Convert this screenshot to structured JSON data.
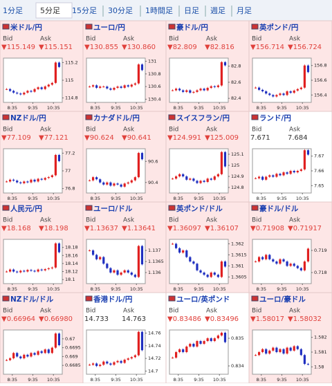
{
  "tabs": [
    "1分足",
    "5分足",
    "15分足",
    "30分足",
    "1時間足",
    "日足",
    "週足",
    "月足"
  ],
  "selected_tab": 1,
  "labels": {
    "bid": "Bid",
    "ask": "Ask"
  },
  "tiles": [
    {
      "name": "米ドル/円",
      "bid": "▼115.149",
      "ask": "▼115.151",
      "value_color": "#e0413c",
      "background": "#fde6e6",
      "ylim": [
        114.75,
        115.25
      ],
      "yticks": [
        115.2,
        115,
        114.8
      ],
      "xlabels": [
        "8:35",
        "9:35",
        "10:35"
      ],
      "closes": [
        114.9,
        114.88,
        114.86,
        114.85,
        114.84,
        114.86,
        114.88,
        114.87,
        114.9,
        114.92,
        114.9,
        114.93,
        114.95,
        114.97,
        115.2,
        115.15
      ]
    },
    {
      "name": "ユーロ/円",
      "bid": "▼130.855",
      "ask": "▼130.860",
      "value_color": "#e0413c",
      "background": "#fde6e6",
      "ylim": [
        130.35,
        131.05
      ],
      "yticks": [
        131,
        130.8,
        130.6,
        130.4
      ],
      "xlabels": [
        "8:35",
        "9:35",
        "10:35"
      ],
      "closes": [
        130.6,
        130.62,
        130.58,
        130.6,
        130.6,
        130.57,
        130.55,
        130.58,
        130.6,
        130.58,
        130.62,
        130.6,
        130.63,
        130.65,
        130.95,
        130.86
      ]
    },
    {
      "name": "豪ドル/円",
      "bid": "▼82.809",
      "ask": "▼82.816",
      "value_color": "#e0413c",
      "background": "#fde6e6",
      "ylim": [
        82.35,
        82.9
      ],
      "yticks": [
        82.8,
        82.6,
        82.4
      ],
      "xlabels": [
        "8:35",
        "9:35",
        "10:35"
      ],
      "closes": [
        82.5,
        82.52,
        82.5,
        82.48,
        82.5,
        82.47,
        82.48,
        82.5,
        82.52,
        82.5,
        82.53,
        82.55,
        82.54,
        82.56,
        82.85,
        82.81
      ]
    },
    {
      "name": "英ポンド/円",
      "bid": "▼156.714",
      "ask": "▼156.724",
      "value_color": "#e0413c",
      "background": "#fde6e6",
      "ylim": [
        156.3,
        156.9
      ],
      "yticks": [
        156.8,
        156.6,
        156.4
      ],
      "xlabels": [
        "8:35",
        "9:35",
        "10:35"
      ],
      "closes": [
        156.5,
        156.47,
        156.45,
        156.42,
        156.4,
        156.38,
        156.4,
        156.42,
        156.4,
        156.45,
        156.43,
        156.46,
        156.48,
        156.5,
        156.8,
        156.71
      ]
    },
    {
      "name": "NZドル/円",
      "bid": "▼77.109",
      "ask": "▼77.121",
      "value_color": "#e0413c",
      "background": "#fde6e6",
      "ylim": [
        76.75,
        77.25
      ],
      "yticks": [
        77.2,
        77,
        76.8
      ],
      "xlabels": [
        "8:35",
        "9:35",
        "10:35"
      ],
      "closes": [
        76.88,
        76.9,
        76.89,
        76.87,
        76.86,
        76.88,
        76.87,
        76.9,
        76.88,
        76.91,
        76.9,
        76.92,
        76.93,
        76.95,
        77.18,
        77.11
      ]
    },
    {
      "name": "カナダドル/円",
      "bid": "▼90.624",
      "ask": "▼90.641",
      "value_color": "#e0413c",
      "background": "#fde6e6",
      "ylim": [
        90.3,
        90.72
      ],
      "yticks": [
        90.6,
        90.4
      ],
      "xlabels": [
        "8:35",
        "9:35",
        "10:35"
      ],
      "closes": [
        90.42,
        90.45,
        90.43,
        90.4,
        90.38,
        90.4,
        90.37,
        90.39,
        90.38,
        90.36,
        90.39,
        90.4,
        90.42,
        90.45,
        90.68,
        90.62
      ]
    },
    {
      "name": "スイスフラン/円",
      "bid": "▼124.991",
      "ask": "▼125.009",
      "value_color": "#e0413c",
      "background": "#fde6e6",
      "ylim": [
        124.75,
        125.15
      ],
      "yticks": [
        125.1,
        125,
        124.9,
        124.8
      ],
      "xlabels": [
        "8:35",
        "9:35",
        "10:35"
      ],
      "closes": [
        124.88,
        124.9,
        124.92,
        124.9,
        124.87,
        124.88,
        124.86,
        124.84,
        124.86,
        124.85,
        124.88,
        124.87,
        124.9,
        124.92,
        125.12,
        124.99
      ]
    },
    {
      "name": "ランド/円",
      "bid": "7.671",
      "ask": "7.684",
      "value_color": "#333333",
      "background": "#ffffff",
      "ylim": [
        7.645,
        7.675
      ],
      "yticks": [
        7.67,
        7.66,
        7.65
      ],
      "xlabels": [
        "8:35",
        "9:35",
        "10:35"
      ],
      "closes": [
        7.655,
        7.656,
        7.654,
        7.656,
        7.657,
        7.656,
        7.658,
        7.657,
        7.659,
        7.658,
        7.66,
        7.659,
        7.66,
        7.661,
        7.674,
        7.671
      ]
    },
    {
      "name": "人民元/円",
      "bid": "▼18.168",
      "ask": "▼18.198",
      "value_color": "#e0413c",
      "background": "#fde6e6",
      "ylim": [
        18.09,
        18.2
      ],
      "yticks": [
        18.18,
        18.16,
        18.14,
        18.12,
        18.1
      ],
      "xlabels": [
        "8:35",
        "9:35",
        "10:35"
      ],
      "closes": [
        18.12,
        18.125,
        18.12,
        18.118,
        18.122,
        18.12,
        18.124,
        18.122,
        18.12,
        18.125,
        18.123,
        18.126,
        18.128,
        18.13,
        18.19,
        18.168
      ]
    },
    {
      "name": "ユーロ/ドル",
      "bid": "▼1.13637",
      "ask": "▼1.13641",
      "value_color": "#e0413c",
      "background": "#fde6e6",
      "ylim": [
        1.1355,
        1.1375
      ],
      "yticks": [
        1.137,
        1.1365,
        1.136
      ],
      "xlabels": [
        "8:35",
        "9:35",
        "10:35"
      ],
      "closes": [
        1.137,
        1.1368,
        1.1366,
        1.1367,
        1.1364,
        1.1362,
        1.136,
        1.1361,
        1.1359,
        1.136,
        1.1361,
        1.136,
        1.1359,
        1.1358,
        1.1372,
        1.13637
      ]
    },
    {
      "name": "英ポンド/ドル",
      "bid": "▼1.36097",
      "ask": "▼1.36107",
      "value_color": "#e0413c",
      "background": "#fde6e6",
      "ylim": [
        1.3602,
        1.3622
      ],
      "yticks": [
        1.362,
        1.3615,
        1.361,
        1.3605
      ],
      "xlabels": [
        "8:35",
        "9:35",
        "10:35"
      ],
      "closes": [
        1.362,
        1.3618,
        1.3616,
        1.3617,
        1.3614,
        1.3612,
        1.3611,
        1.3608,
        1.3607,
        1.3606,
        1.3605,
        1.3607,
        1.3606,
        1.3605,
        1.3612,
        1.36097
      ]
    },
    {
      "name": "豪ドル/ドル",
      "bid": "▼0.71908",
      "ask": "▼0.71917",
      "value_color": "#e0413c",
      "background": "#fde6e6",
      "ylim": [
        0.7175,
        0.7195
      ],
      "yticks": [
        0.719,
        0.718
      ],
      "xlabels": [
        "8:35",
        "9:35",
        "10:35"
      ],
      "closes": [
        0.7185,
        0.7187,
        0.7186,
        0.7188,
        0.7186,
        0.7185,
        0.7184,
        0.7186,
        0.7185,
        0.7183,
        0.7184,
        0.7183,
        0.7182,
        0.7181,
        0.7185,
        0.71908
      ]
    },
    {
      "name": "NZドル/ドル",
      "bid": "▼0.66964",
      "ask": "▼0.66980",
      "value_color": "#e0413c",
      "background": "#fde6e6",
      "ylim": [
        0.668,
        0.6705
      ],
      "yticks": [
        0.67,
        0.6695,
        0.669,
        0.6685
      ],
      "xlabels": [
        "8:35",
        "9:35",
        "10:35"
      ],
      "closes": [
        0.6688,
        0.6689,
        0.6692,
        0.669,
        0.6689,
        0.6691,
        0.669,
        0.6692,
        0.6691,
        0.6693,
        0.6692,
        0.6694,
        0.6692,
        0.6695,
        0.6703,
        0.66964
      ]
    },
    {
      "name": "香港ドル/円",
      "bid": "14.733",
      "ask": "14.763",
      "value_color": "#333333",
      "background": "#ffffff",
      "ylim": [
        14.695,
        14.765
      ],
      "yticks": [
        14.76,
        14.74,
        14.72,
        14.7
      ],
      "xlabels": [
        "8:35",
        "9:35",
        "10:35"
      ],
      "closes": [
        14.71,
        14.712,
        14.708,
        14.71,
        14.715,
        14.712,
        14.71,
        14.714,
        14.716,
        14.713,
        14.718,
        14.72,
        14.722,
        14.725,
        14.762,
        14.733
      ]
    },
    {
      "name": "ユーロ/英ポンド",
      "bid": "▼0.83486",
      "ask": "▼0.83496",
      "value_color": "#e0413c",
      "background": "#ffffff",
      "ylim": [
        0.8337,
        0.8353
      ],
      "yticks": [
        0.835,
        0.834
      ],
      "xlabels": [
        "8:35",
        "9:35",
        "10:35"
      ],
      "closes": [
        0.8343,
        0.8345,
        0.8346,
        0.8345,
        0.8347,
        0.8348,
        0.8347,
        0.8349,
        0.8348,
        0.8349,
        0.835,
        0.8349,
        0.835,
        0.8351,
        0.8352,
        0.83486
      ]
    },
    {
      "name": "ユーロ/豪ドル",
      "bid": "▼1.58017",
      "ask": "▼1.58032",
      "value_color": "#e0413c",
      "background": "#fde6e6",
      "ylim": [
        1.5795,
        1.5825
      ],
      "yticks": [
        1.582,
        1.581,
        1.58
      ],
      "xlabels": [
        "8:35",
        "9:35",
        "10:35"
      ],
      "closes": [
        1.5808,
        1.581,
        1.5812,
        1.5809,
        1.5811,
        1.5813,
        1.581,
        1.5812,
        1.5809,
        1.5813,
        1.5811,
        1.5814,
        1.5812,
        1.5808,
        1.5802,
        1.58017
      ]
    }
  ]
}
